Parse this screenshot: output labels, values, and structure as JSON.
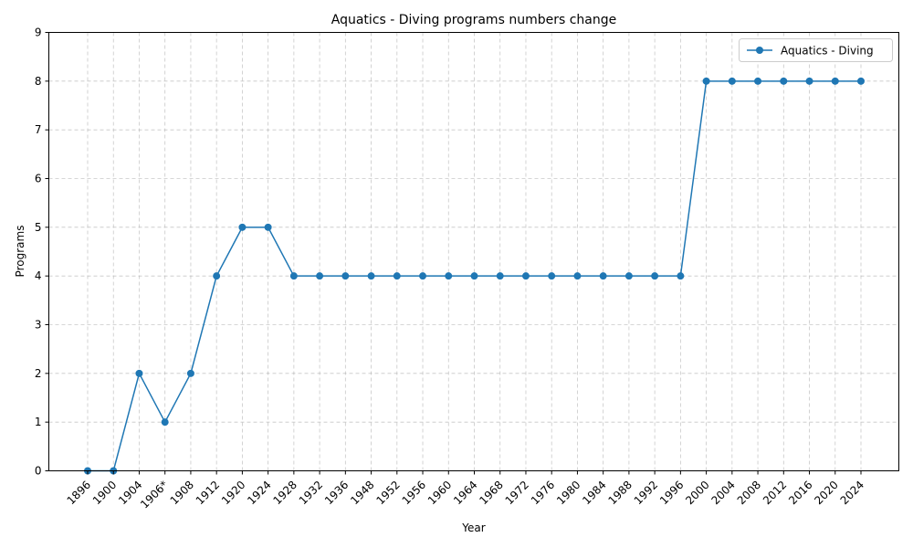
{
  "chart_data": {
    "type": "line",
    "title": "Aquatics - Diving programs numbers change",
    "xlabel": "Year",
    "ylabel": "Programs",
    "ylim": [
      0,
      9
    ],
    "y_ticks": [
      "0",
      "1",
      "2",
      "3",
      "4",
      "5",
      "6",
      "7",
      "8",
      "9"
    ],
    "grid": true,
    "legend_position": "top-right",
    "categories": [
      "1896",
      "1900",
      "1904",
      "1906*",
      "1908",
      "1912",
      "1920",
      "1924",
      "1928",
      "1932",
      "1936",
      "1948",
      "1952",
      "1956",
      "1960",
      "1964",
      "1968",
      "1972",
      "1976",
      "1980",
      "1984",
      "1988",
      "1992",
      "1996",
      "2000",
      "2004",
      "2008",
      "2012",
      "2016",
      "2020",
      "2024"
    ],
    "series": [
      {
        "name": "Aquatics - Diving",
        "color": "#1f77b4",
        "values": [
          0,
          0,
          2,
          1,
          2,
          4,
          5,
          5,
          4,
          4,
          4,
          4,
          4,
          4,
          4,
          4,
          4,
          4,
          4,
          4,
          4,
          4,
          4,
          4,
          8,
          8,
          8,
          8,
          8,
          8,
          8
        ]
      }
    ]
  }
}
